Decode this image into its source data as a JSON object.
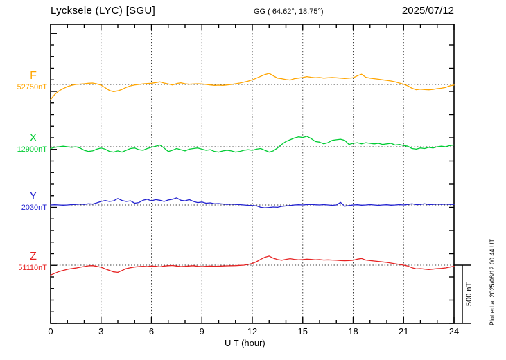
{
  "header": {
    "station": "Lycksele (LYC)  [SGU]",
    "coordinates": "GG ( 64.62°,  18.75°)",
    "date": "2025/07/12"
  },
  "x_axis": {
    "title": "U T (hour)",
    "ticks": [
      "0",
      "3",
      "6",
      "9",
      "12",
      "15",
      "18",
      "21",
      "24"
    ],
    "min_hour": 0,
    "max_hour": 24,
    "major_step_hours": 3,
    "minor_step_hours": 1
  },
  "scale_bar": {
    "label": "500 nT",
    "nT": 500
  },
  "plotted_at": "Plotted at 2025/08/12 00:44 UT",
  "chart_data": {
    "type": "line",
    "title": "Lycksele (LYC) [SGU] magnetogram, 2025/07/12",
    "xlabel": "U T (hour)",
    "x_range_hours": [
      0,
      24
    ],
    "x_step_hours": 0.25,
    "grid": "dotted vertical lines every 3 h; dotted horizontal baseline per component",
    "legend_position": "left margin, one colored label per component",
    "scale_division_nT": 500,
    "series": [
      {
        "name": "F",
        "baseline_label": "52750nT",
        "baseline_nT": 52750,
        "color": "#FFA500",
        "values_nT_offset": [
          -130,
          -85,
          -55,
          -35,
          -18,
          -8,
          0,
          3,
          6,
          10,
          12,
          5,
          -6,
          -28,
          -52,
          -62,
          -55,
          -42,
          -25,
          -12,
          -4,
          0,
          5,
          8,
          10,
          16,
          22,
          12,
          4,
          -4,
          8,
          14,
          6,
          2,
          4,
          6,
          4,
          0,
          -4,
          -8,
          -6,
          -8,
          -4,
          0,
          6,
          12,
          20,
          28,
          40,
          55,
          70,
          85,
          95,
          75,
          55,
          50,
          42,
          38,
          50,
          55,
          60,
          68,
          62,
          58,
          60,
          55,
          58,
          60,
          58,
          55,
          52,
          55,
          58,
          75,
          88,
          62,
          55,
          50,
          45,
          40,
          35,
          30,
          22,
          12,
          2,
          -12,
          -32,
          -45,
          -40,
          -44,
          -46,
          -42,
          -36,
          -32,
          -25,
          -12,
          -5
        ]
      },
      {
        "name": "X",
        "baseline_label": "12900nT",
        "baseline_nT": 12900,
        "color": "#00CC33",
        "values_nT_offset": [
          -15,
          -5,
          0,
          5,
          0,
          -5,
          0,
          -10,
          -30,
          -40,
          -35,
          -20,
          -10,
          -20,
          -40,
          -45,
          -35,
          -45,
          -30,
          -15,
          -10,
          -25,
          -30,
          -15,
          -5,
          5,
          15,
          -10,
          -40,
          -30,
          -15,
          -25,
          -35,
          -20,
          -15,
          -10,
          -20,
          -30,
          -25,
          -40,
          -45,
          -35,
          -30,
          -35,
          -45,
          -40,
          -30,
          -25,
          -30,
          -20,
          -15,
          -30,
          -45,
          -35,
          -10,
          20,
          45,
          60,
          75,
          85,
          80,
          90,
          70,
          45,
          40,
          25,
          35,
          55,
          60,
          65,
          55,
          20,
          30,
          35,
          25,
          35,
          30,
          25,
          30,
          20,
          25,
          30,
          15,
          20,
          10,
          5,
          -15,
          -20,
          -10,
          -15,
          -5,
          -10,
          0,
          5,
          0,
          10,
          15
        ]
      },
      {
        "name": "Y",
        "baseline_label": "2030nT",
        "baseline_nT": 2030,
        "color": "#2222D0",
        "values_nT_offset": [
          0,
          2,
          0,
          -2,
          0,
          3,
          5,
          8,
          5,
          10,
          8,
          18,
          30,
          38,
          30,
          35,
          55,
          38,
          30,
          35,
          15,
          20,
          40,
          48,
          35,
          45,
          40,
          30,
          42,
          48,
          60,
          40,
          35,
          45,
          30,
          20,
          25,
          15,
          18,
          10,
          12,
          8,
          5,
          8,
          5,
          3,
          0,
          -3,
          -5,
          -8,
          -20,
          -25,
          -22,
          -18,
          -20,
          -12,
          -8,
          -5,
          0,
          2,
          0,
          3,
          5,
          2,
          0,
          3,
          0,
          -3,
          0,
          22,
          -10,
          -5,
          0,
          2,
          -2,
          0,
          3,
          0,
          -3,
          0,
          2,
          -2,
          0,
          3,
          0,
          5,
          10,
          3,
          5,
          10,
          3,
          5,
          8,
          5,
          8,
          5,
          5
        ]
      },
      {
        "name": "Z",
        "baseline_label": "51110nT",
        "baseline_nT": 51110,
        "color": "#E62222",
        "values_nT_offset": [
          -85,
          -70,
          -55,
          -45,
          -36,
          -30,
          -25,
          -18,
          -12,
          -6,
          -4,
          -10,
          -18,
          -32,
          -45,
          -58,
          -62,
          -46,
          -30,
          -22,
          -16,
          -12,
          -10,
          -12,
          -8,
          -10,
          -14,
          -8,
          -5,
          -3,
          -8,
          -12,
          -10,
          -7,
          -5,
          -10,
          -12,
          -10,
          -8,
          -10,
          -9,
          -7,
          -6,
          -5,
          -4,
          -2,
          0,
          6,
          15,
          30,
          50,
          68,
          78,
          60,
          48,
          42,
          50,
          56,
          50,
          46,
          48,
          52,
          50,
          46,
          48,
          44,
          46,
          44,
          42,
          40,
          38,
          40,
          42,
          52,
          58,
          44,
          40,
          36,
          32,
          28,
          24,
          18,
          12,
          6,
          0,
          -8,
          -22,
          -32,
          -30,
          -34,
          -38,
          -34,
          -30,
          -28,
          -24,
          -16,
          -10
        ]
      }
    ]
  }
}
